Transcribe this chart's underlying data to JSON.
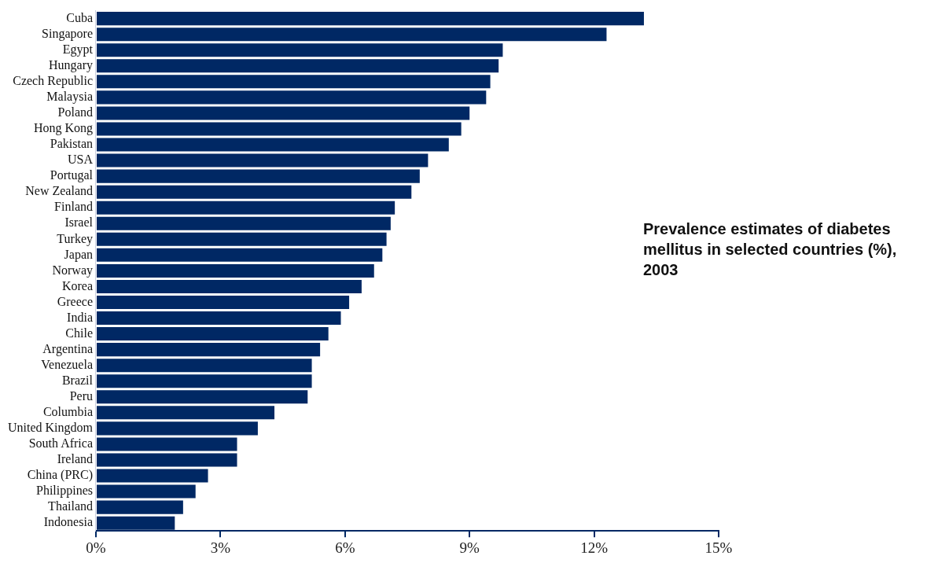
{
  "chart_data": {
    "type": "bar",
    "orientation": "horizontal",
    "title": "Prevalence estimates of diabetes mellitus in selected countries (%), 2003",
    "categories": [
      "Cuba",
      "Singapore",
      "Egypt",
      "Hungary",
      "Czech Republic",
      "Malaysia",
      "Poland",
      "Hong Kong",
      "Pakistan",
      "USA",
      "Portugal",
      "New Zealand",
      "Finland",
      "Israel",
      "Turkey",
      "Japan",
      "Norway",
      "Korea",
      "Greece",
      "India",
      "Chile",
      "Argentina",
      "Venezuela",
      "Brazil",
      "Peru",
      "Columbia",
      "United Kingdom",
      "South Africa",
      "Ireland",
      "China (PRC)",
      "Philippines",
      "Thailand",
      "Indonesia"
    ],
    "values": [
      13.2,
      12.3,
      9.8,
      9.7,
      9.5,
      9.4,
      9.0,
      8.8,
      8.5,
      8.0,
      7.8,
      7.6,
      7.2,
      7.1,
      7.0,
      6.9,
      6.7,
      6.4,
      6.1,
      5.9,
      5.6,
      5.4,
      5.2,
      5.2,
      5.1,
      4.3,
      3.9,
      3.4,
      3.4,
      2.7,
      2.4,
      2.1,
      1.9
    ],
    "color": "#002864",
    "xlim": [
      0,
      15
    ],
    "xticks": [
      {
        "value": 0,
        "label": "0%"
      },
      {
        "value": 3,
        "label": "3%"
      },
      {
        "value": 6,
        "label": "6%"
      },
      {
        "value": 9,
        "label": "9%"
      },
      {
        "value": 12,
        "label": "12%"
      },
      {
        "value": 15,
        "label": "15%"
      }
    ],
    "grid": false,
    "legend": false
  }
}
